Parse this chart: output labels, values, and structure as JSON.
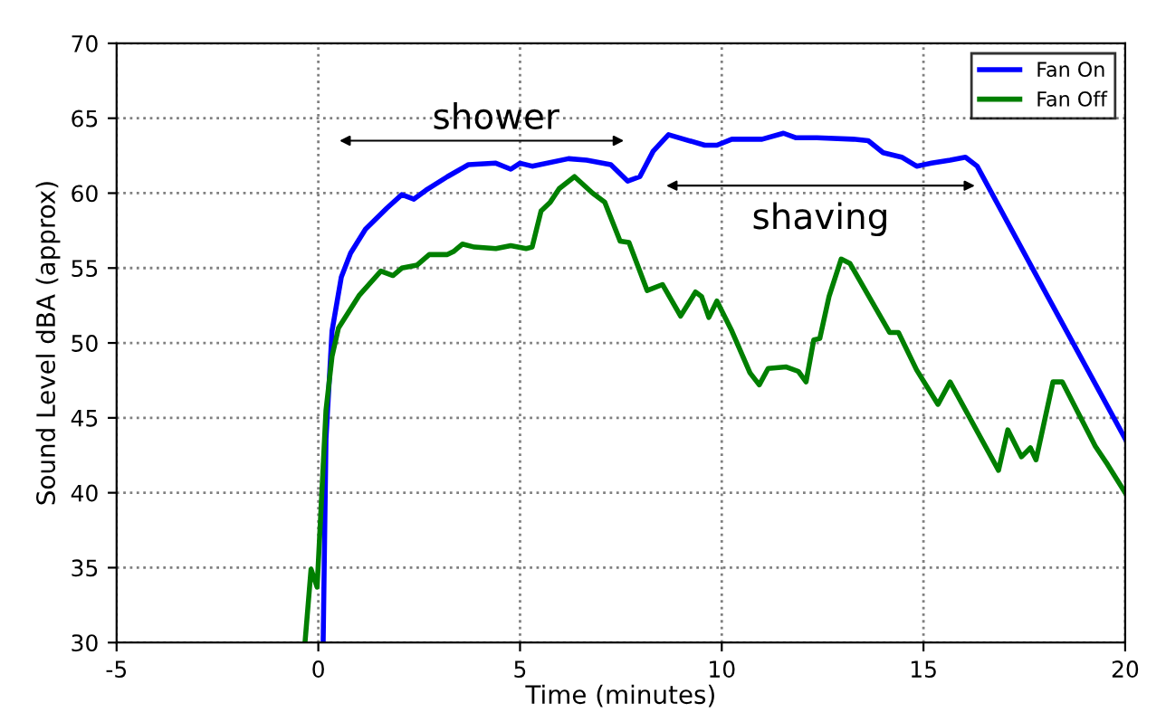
{
  "chart_data": {
    "type": "line",
    "xlabel": "Time (minutes)",
    "ylabel": "Sound Level dBA (approx)",
    "xlim": [
      -5,
      20
    ],
    "ylim": [
      30,
      70
    ],
    "xticks": [
      -5,
      0,
      5,
      10,
      15,
      20
    ],
    "yticks": [
      30,
      35,
      40,
      45,
      50,
      55,
      60,
      65,
      70
    ],
    "grid": true,
    "legend": "top right",
    "line_style": "solid",
    "marker": "none",
    "series": [
      {
        "name": "Fan On",
        "color": "#0000ff",
        "x": [
          0.12,
          0.19,
          0.34,
          0.57,
          0.8,
          1.17,
          1.7,
          2.07,
          2.37,
          2.67,
          3.2,
          3.72,
          4.4,
          4.77,
          5.0,
          5.3,
          6.2,
          6.65,
          7.25,
          7.67,
          7.97,
          8.3,
          8.68,
          9.58,
          9.88,
          10.25,
          11.0,
          11.53,
          11.83,
          12.36,
          13.26,
          13.63,
          14.0,
          14.46,
          14.83,
          15.2,
          15.66,
          16.04,
          16.33,
          18.06,
          20.0
        ],
        "values": [
          30,
          43.6,
          50.8,
          54.4,
          56,
          57.6,
          59,
          59.9,
          59.6,
          60.2,
          61.1,
          61.9,
          62,
          61.6,
          62,
          61.8,
          62.3,
          62.2,
          61.9,
          60.8,
          61.1,
          62.8,
          63.9,
          63.2,
          63.2,
          63.6,
          63.6,
          64,
          63.7,
          63.7,
          63.6,
          63.5,
          62.7,
          62.4,
          61.8,
          62,
          62.2,
          62.4,
          61.8,
          53.2,
          43.6
        ]
      },
      {
        "name": "Fan Off",
        "color": "#007f00",
        "x": [
          -0.33,
          -0.18,
          -0.03,
          0.05,
          0.19,
          0.34,
          0.5,
          1.02,
          1.55,
          1.85,
          2.07,
          2.45,
          2.75,
          3.2,
          3.35,
          3.57,
          3.87,
          4.4,
          4.77,
          5.15,
          5.3,
          5.52,
          5.75,
          5.97,
          6.35,
          6.8,
          7.1,
          7.48,
          7.7,
          8.15,
          8.53,
          8.98,
          9.35,
          9.5,
          9.68,
          9.88,
          10.25,
          10.7,
          10.93,
          11.15,
          11.6,
          11.9,
          12.09,
          12.28,
          12.43,
          12.66,
          12.96,
          13.18,
          14.16,
          14.38,
          14.83,
          15.36,
          15.66,
          16.86,
          17.09,
          17.43,
          17.65,
          17.79,
          18.21,
          18.44,
          19.26,
          19.56,
          20.0
        ],
        "values": [
          30,
          34.9,
          33.7,
          38,
          45.5,
          49.1,
          51,
          53.2,
          54.8,
          54.5,
          55,
          55.2,
          55.9,
          55.9,
          56.1,
          56.6,
          56.4,
          56.3,
          56.5,
          56.3,
          56.4,
          58.8,
          59.4,
          60.3,
          61.1,
          60,
          59.4,
          56.8,
          56.7,
          53.5,
          53.9,
          51.8,
          53.4,
          53.1,
          51.7,
          52.8,
          50.8,
          48,
          47.2,
          48.3,
          48.4,
          48.1,
          47.4,
          50.2,
          50.3,
          53.1,
          55.6,
          55.3,
          50.7,
          50.7,
          48.2,
          45.9,
          47.4,
          41.5,
          44.2,
          42.4,
          43,
          42.2,
          47.4,
          47.4,
          43.1,
          41.9,
          40
        ]
      }
    ],
    "annotations": [
      "shower",
      "shaving"
    ]
  }
}
